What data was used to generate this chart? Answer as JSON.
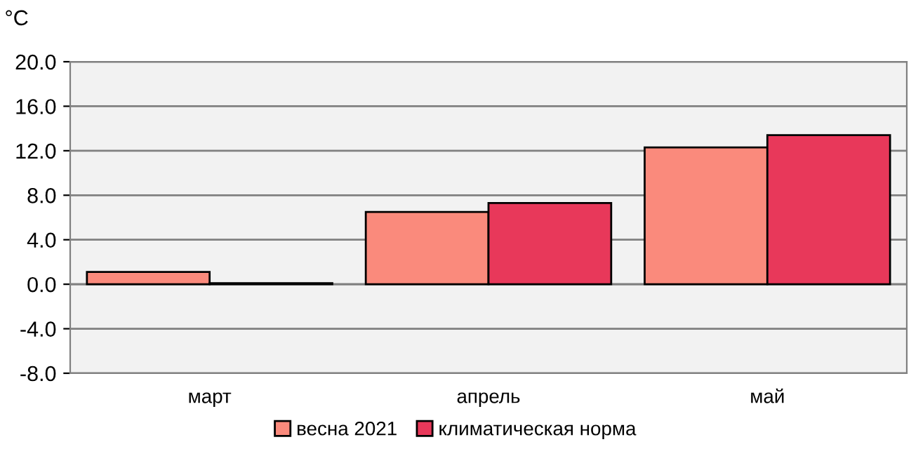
{
  "chart_data": {
    "type": "bar",
    "ylabel": "°C",
    "categories": [
      "март",
      "апрель",
      "май"
    ],
    "series": [
      {
        "name": "весна 2021",
        "color": "#fa8a7c",
        "values": [
          1.1,
          6.5,
          12.3
        ]
      },
      {
        "name": "климатическая норма",
        "color": "#e8385a",
        "values": [
          0.1,
          7.3,
          13.4
        ]
      }
    ],
    "ylim": [
      -8,
      20
    ],
    "yticks": [
      {
        "value": -8,
        "label": "-8.0"
      },
      {
        "value": -4,
        "label": "-4.0"
      },
      {
        "value": 0,
        "label": "0.0"
      },
      {
        "value": 4,
        "label": "4.0"
      },
      {
        "value": 8,
        "label": "8.0"
      },
      {
        "value": 12,
        "label": "12.0"
      },
      {
        "value": 16,
        "label": "16.0"
      },
      {
        "value": 20,
        "label": "20.0"
      }
    ],
    "grid": "y",
    "legend": "bottom"
  }
}
